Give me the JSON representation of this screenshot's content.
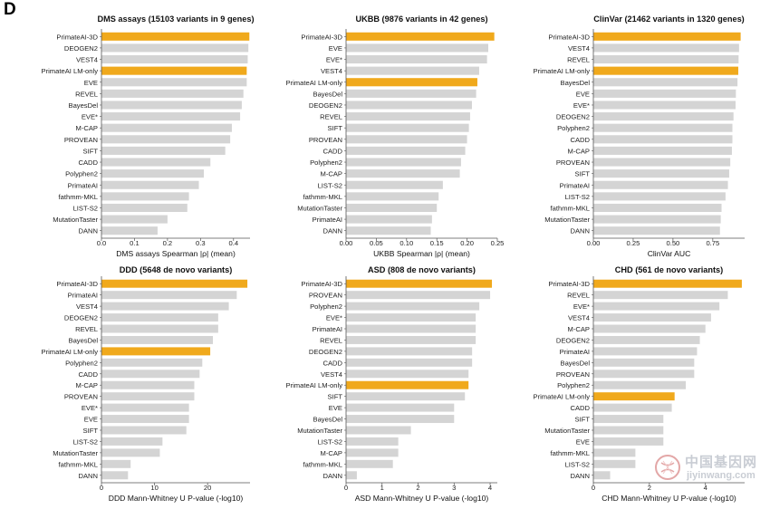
{
  "figure": {
    "panel_letter": "D"
  },
  "colors": {
    "highlight": "#f0a91c",
    "bar": "#d4d4d4",
    "axis": "#555555",
    "text": "#222222"
  },
  "watermark": {
    "title": "中国基因网",
    "url": "jiyinwang.com"
  },
  "chart_data": [
    {
      "type": "bar",
      "orientation": "horizontal",
      "title": "DMS assays (15103 variants in 9 genes)",
      "xlabel": "DMS assays Spearman |ρ| (mean)",
      "xlim": [
        0,
        0.45
      ],
      "xticks": [
        0.0,
        0.1,
        0.2,
        0.3,
        0.4
      ],
      "tick_labels": [
        "0.0",
        "0.1",
        "0.2",
        "0.3",
        "0.4"
      ],
      "categories": [
        "PrimateAI-3D",
        "DEOGEN2",
        "VEST4",
        "PrimateAI LM-only",
        "EVE",
        "REVEL",
        "BayesDel",
        "EVE*",
        "M-CAP",
        "PROVEAN",
        "SIFT",
        "CADD",
        "Polyphen2",
        "PrimateAI",
        "fathmm-MKL",
        "LIST-S2",
        "MutationTaster",
        "DANN"
      ],
      "values": [
        0.448,
        0.445,
        0.443,
        0.44,
        0.44,
        0.43,
        0.425,
        0.42,
        0.395,
        0.39,
        0.375,
        0.33,
        0.31,
        0.295,
        0.265,
        0.26,
        0.2,
        0.17
      ],
      "highlighted": [
        "PrimateAI-3D",
        "PrimateAI LM-only"
      ]
    },
    {
      "type": "bar",
      "orientation": "horizontal",
      "title": "UKBB (9876 variants in 42 genes)",
      "xlabel": "UKBB Spearman |ρ| (mean)",
      "xlim": [
        0,
        0.25
      ],
      "xticks": [
        0.0,
        0.05,
        0.1,
        0.15,
        0.2,
        0.25
      ],
      "tick_labels": [
        "0.00",
        "0.05",
        "0.10",
        "0.15",
        "0.20",
        "0.25"
      ],
      "categories": [
        "PrimateAI-3D",
        "EVE",
        "EVE*",
        "VEST4",
        "PrimateAI LM-only",
        "BayesDel",
        "DEOGEN2",
        "REVEL",
        "SIFT",
        "PROVEAN",
        "CADD",
        "Polyphen2",
        "M-CAP",
        "LIST-S2",
        "fathmm-MKL",
        "MutationTaster",
        "PrimateAI",
        "DANN"
      ],
      "values": [
        0.245,
        0.235,
        0.233,
        0.22,
        0.217,
        0.215,
        0.208,
        0.205,
        0.203,
        0.2,
        0.197,
        0.19,
        0.188,
        0.16,
        0.153,
        0.15,
        0.142,
        0.14
      ],
      "highlighted": [
        "PrimateAI-3D",
        "PrimateAI LM-only"
      ]
    },
    {
      "type": "bar",
      "orientation": "horizontal",
      "title": "ClinVar (21462 variants in 1320 genes)",
      "xlabel": "ClinVar AUC",
      "xlim": [
        0,
        0.95
      ],
      "xticks": [
        0.0,
        0.25,
        0.5,
        0.75
      ],
      "tick_labels": [
        "0.00",
        "0.25",
        "0.50",
        "0.75"
      ],
      "categories": [
        "PrimateAI-3D",
        "VEST4",
        "REVEL",
        "PrimateAI LM-only",
        "BayesDel",
        "EVE",
        "EVE*",
        "DEOGEN2",
        "Polyphen2",
        "CADD",
        "M-CAP",
        "PROVEAN",
        "SIFT",
        "PrimateAI",
        "LIST-S2",
        "fathmm-MKL",
        "MutationTaster",
        "DANN"
      ],
      "values": [
        0.925,
        0.915,
        0.912,
        0.91,
        0.905,
        0.895,
        0.893,
        0.88,
        0.873,
        0.873,
        0.87,
        0.86,
        0.853,
        0.845,
        0.83,
        0.805,
        0.8,
        0.795
      ],
      "highlighted": [
        "PrimateAI-3D",
        "PrimateAI LM-only"
      ]
    },
    {
      "type": "bar",
      "orientation": "horizontal",
      "title": "DDD (5648 de novo variants)",
      "xlabel": "DDD Mann-Whitney U P-value (-log10)",
      "xlim": [
        0,
        28
      ],
      "xticks": [
        0,
        10,
        20
      ],
      "tick_labels": [
        "0",
        "10",
        "20"
      ],
      "categories": [
        "PrimateAI-3D",
        "PrimateAI",
        "VEST4",
        "DEOGEN2",
        "REVEL",
        "BayesDel",
        "PrimateAI LM-only",
        "Polyphen2",
        "CADD",
        "M-CAP",
        "PROVEAN",
        "EVE*",
        "EVE",
        "SIFT",
        "LIST-S2",
        "MutationTaster",
        "fathmm-MKL",
        "DANN"
      ],
      "values": [
        27.5,
        25.5,
        24.0,
        22.0,
        22.0,
        21.0,
        20.5,
        19.0,
        18.5,
        17.5,
        17.5,
        16.5,
        16.5,
        16.0,
        11.5,
        11.0,
        5.5,
        5.0
      ],
      "highlighted": [
        "PrimateAI-3D",
        "PrimateAI LM-only"
      ]
    },
    {
      "type": "bar",
      "orientation": "horizontal",
      "title": "ASD (808 de novo variants)",
      "xlabel": "ASD Mann-Whitney U P-value (-log10)",
      "xlim": [
        0,
        4.2
      ],
      "xticks": [
        0,
        1,
        2,
        3,
        4
      ],
      "tick_labels": [
        "0",
        "1",
        "2",
        "3",
        "4"
      ],
      "categories": [
        "PrimateAI-3D",
        "PROVEAN",
        "Polyphen2",
        "EVE*",
        "PrimateAI",
        "REVEL",
        "DEOGEN2",
        "CADD",
        "VEST4",
        "PrimateAI LM-only",
        "SIFT",
        "EVE",
        "BayesDel",
        "MutationTaster",
        "LIST-S2",
        "M-CAP",
        "fathmm-MKL",
        "DANN"
      ],
      "values": [
        4.05,
        4.0,
        3.7,
        3.6,
        3.6,
        3.6,
        3.5,
        3.5,
        3.4,
        3.4,
        3.3,
        3.0,
        3.0,
        1.8,
        1.45,
        1.45,
        1.3,
        0.3
      ],
      "highlighted": [
        "PrimateAI-3D",
        "PrimateAI LM-only"
      ]
    },
    {
      "type": "bar",
      "orientation": "horizontal",
      "title": "CHD (561 de novo variants)",
      "xlabel": "CHD Mann-Whitney U P-value (-log10)",
      "xlim": [
        0,
        5.4
      ],
      "xticks": [
        0,
        2,
        4
      ],
      "tick_labels": [
        "0",
        "2",
        "4"
      ],
      "categories": [
        "PrimateAI-3D",
        "REVEL",
        "EVE*",
        "VEST4",
        "M-CAP",
        "DEOGEN2",
        "PrimateAI",
        "BayesDel",
        "PROVEAN",
        "Polyphen2",
        "PrimateAI LM-only",
        "CADD",
        "SIFT",
        "MutationTaster",
        "EVE",
        "fathmm-MKL",
        "LIST-S2",
        "DANN"
      ],
      "values": [
        5.3,
        4.8,
        4.5,
        4.2,
        4.0,
        3.8,
        3.7,
        3.6,
        3.6,
        3.3,
        2.9,
        2.8,
        2.5,
        2.5,
        2.5,
        1.5,
        1.5,
        0.6
      ],
      "highlighted": [
        "PrimateAI-3D",
        "PrimateAI LM-only"
      ]
    }
  ]
}
